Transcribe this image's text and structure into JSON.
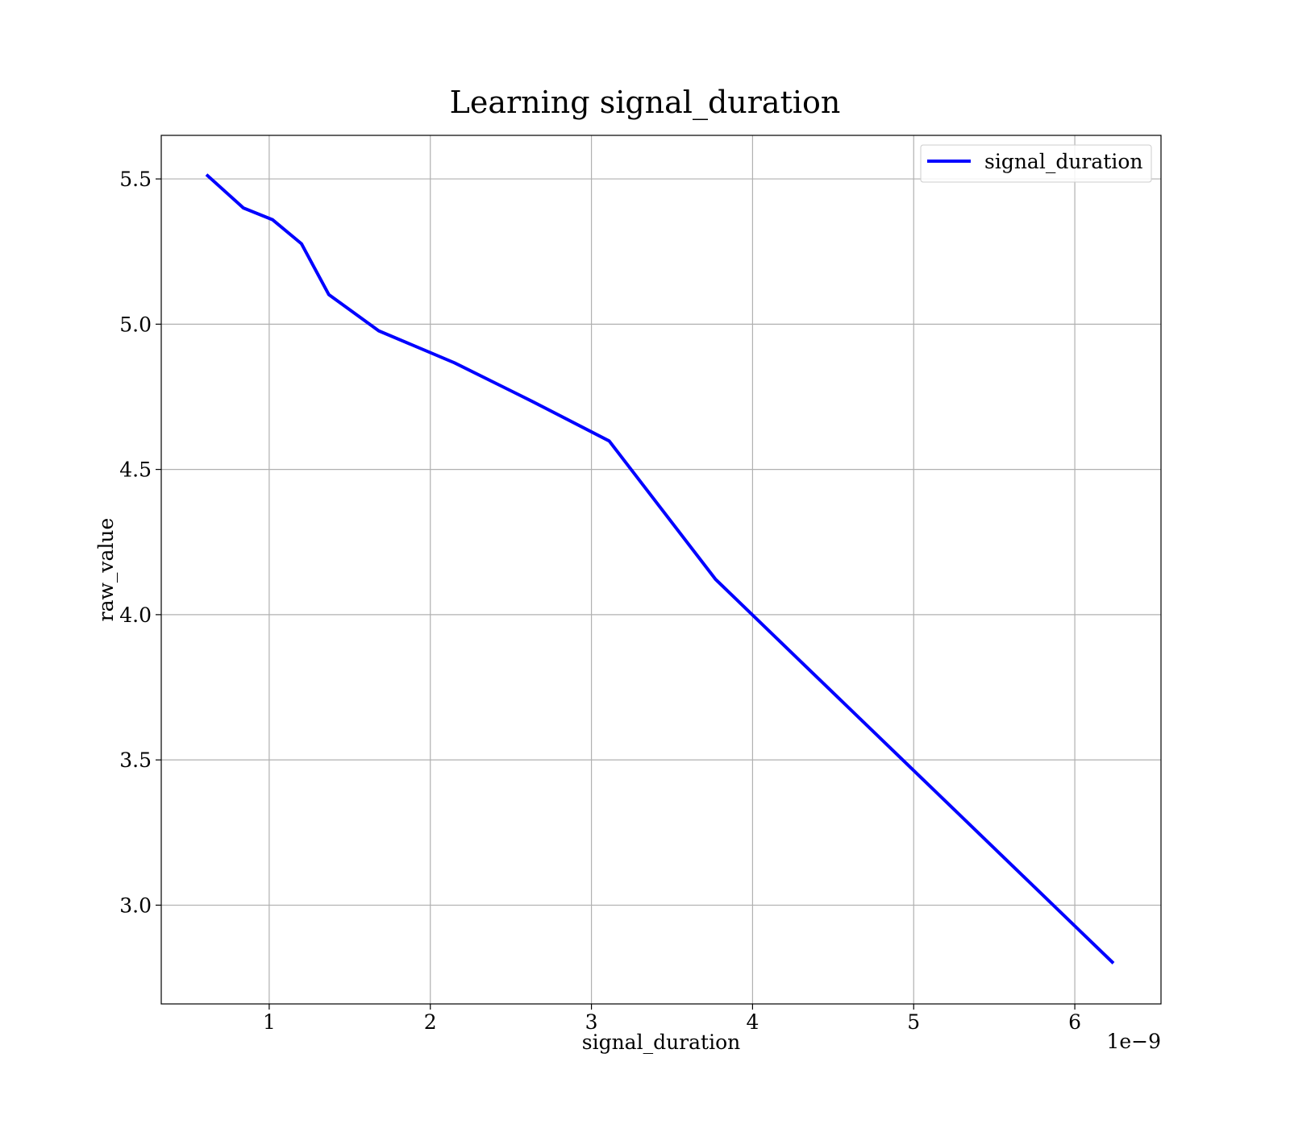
{
  "chart_data": {
    "type": "line",
    "title": "Learning signal_duration",
    "xlabel": "signal_duration",
    "ylabel": "raw_value",
    "x_offset_label": "1e−9",
    "xlim": [
      0.33,
      6.535
    ],
    "ylim": [
      2.66,
      5.65
    ],
    "xticks": [
      1,
      2,
      3,
      4,
      5,
      6
    ],
    "xtick_labels": [
      "1",
      "2",
      "3",
      "4",
      "5",
      "6"
    ],
    "yticks": [
      3.0,
      3.5,
      4.0,
      4.5,
      5.0,
      5.5
    ],
    "ytick_labels": [
      "3.0",
      "3.5",
      "4.0",
      "4.5",
      "5.0",
      "5.5"
    ],
    "grid": true,
    "legend": {
      "position": "upper right",
      "entries": [
        "signal_duration"
      ]
    },
    "series": [
      {
        "name": "signal_duration",
        "color": "#0000ff",
        "x": [
          0.61,
          0.84,
          1.02,
          1.2,
          1.37,
          1.68,
          2.15,
          2.63,
          3.11,
          3.77,
          6.24
        ],
        "y": [
          5.515,
          5.4,
          5.36,
          5.277,
          5.102,
          4.977,
          4.867,
          4.735,
          4.598,
          4.122,
          2.8
        ]
      }
    ]
  }
}
